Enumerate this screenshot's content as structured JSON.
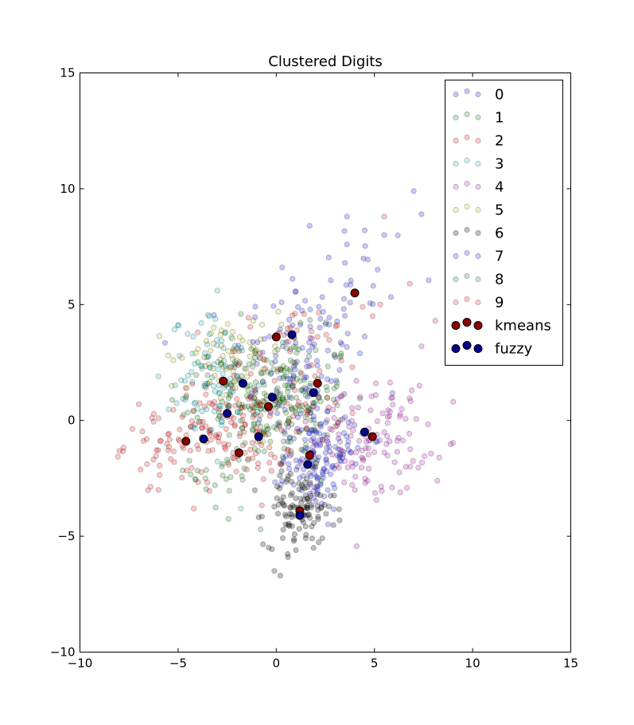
{
  "chart_data": {
    "type": "scatter",
    "title": "Clustered Digits",
    "xlabel": "",
    "ylabel": "",
    "xlim": [
      -10,
      15
    ],
    "ylim": [
      -10,
      15
    ],
    "xticks": [
      -10,
      -5,
      0,
      5,
      10,
      15
    ],
    "yticks": [
      -10,
      -5,
      0,
      5,
      10,
      15
    ],
    "xtick_labels": [
      "−10",
      "−5",
      "0",
      "5",
      "10",
      "15"
    ],
    "ytick_labels": [
      "−10",
      "−5",
      "0",
      "5",
      "10",
      "15"
    ],
    "grid": false,
    "legend_placement": "top-right",
    "series": [
      {
        "name": "0",
        "color": "#0000ff",
        "alpha": 0.22,
        "clusters": [
          {
            "cx": 1.2,
            "cy": 2.5,
            "sx": 1.7,
            "sy": 1.8,
            "n": 110
          },
          {
            "cx": 3.6,
            "cy": 5.8,
            "sx": 1.8,
            "sy": 1.6,
            "n": 25
          }
        ],
        "extra_points": [
          [
            7.0,
            9.9
          ],
          [
            7.4,
            8.9
          ],
          [
            3.6,
            8.8
          ],
          [
            5.5,
            8.0
          ],
          [
            4.5,
            8.2
          ],
          [
            1.7,
            8.4
          ],
          [
            3.6,
            7.6
          ],
          [
            0.3,
            6.6
          ]
        ]
      },
      {
        "name": "1",
        "color": "#008000",
        "alpha": 0.22,
        "clusters": [
          {
            "cx": 0.2,
            "cy": 1.2,
            "sx": 1.7,
            "sy": 1.3,
            "n": 130
          },
          {
            "cx": -2.5,
            "cy": -2.2,
            "sx": 0.9,
            "sy": 1.0,
            "n": 25
          }
        ],
        "extra_points": [
          [
            -0.8,
            -4.7
          ],
          [
            -1.8,
            4.6
          ],
          [
            3.3,
            2.8
          ]
        ]
      },
      {
        "name": "2",
        "color": "#ff0000",
        "alpha": 0.22,
        "clusters": [
          {
            "cx": -2.2,
            "cy": -0.5,
            "sx": 1.6,
            "sy": 1.1,
            "n": 110
          },
          {
            "cx": -5.5,
            "cy": -1.0,
            "sx": 1.1,
            "sy": 0.8,
            "n": 50
          }
        ],
        "extra_points": [
          [
            5.5,
            8.8
          ],
          [
            6.8,
            5.9
          ],
          [
            5.3,
            5.0
          ],
          [
            8.1,
            4.3
          ],
          [
            -7.0,
            0.7
          ],
          [
            -6.0,
            -3.0
          ],
          [
            -4.2,
            -3.8
          ]
        ]
      },
      {
        "name": "3",
        "color": "#00bfbf",
        "alpha": 0.22,
        "clusters": [
          {
            "cx": -3.0,
            "cy": 1.8,
            "sx": 1.2,
            "sy": 1.3,
            "n": 90
          }
        ],
        "extra_points": [
          [
            -3.0,
            5.6
          ],
          [
            -5.0,
            4.1
          ],
          [
            -6.0,
            1.9
          ],
          [
            -3.4,
            4.5
          ],
          [
            -1.8,
            -3.8
          ]
        ]
      },
      {
        "name": "4",
        "color": "#bf00bf",
        "alpha": 0.22,
        "clusters": [
          {
            "cx": 4.8,
            "cy": -0.8,
            "sx": 1.4,
            "sy": 1.2,
            "n": 120
          }
        ],
        "extra_points": [
          [
            7.3,
            1.5
          ],
          [
            6.9,
            1.3
          ],
          [
            8.3,
            -1.6
          ],
          [
            8.2,
            -2.6
          ],
          [
            7.4,
            3.2
          ],
          [
            6.6,
            -2.0
          ],
          [
            5.9,
            -2.9
          ],
          [
            4.0,
            -3.0
          ]
        ]
      },
      {
        "name": "5",
        "color": "#bfbf00",
        "alpha": 0.22,
        "clusters": [
          {
            "cx": -2.6,
            "cy": 2.4,
            "sx": 1.4,
            "sy": 1.1,
            "n": 60
          }
        ],
        "extra_points": [
          [
            -5.5,
            2.8
          ],
          [
            -4.8,
            2.7
          ],
          [
            -0.8,
            3.5
          ],
          [
            0.1,
            4.7
          ]
        ]
      },
      {
        "name": "6",
        "color": "#000000",
        "alpha": 0.25,
        "clusters": [
          {
            "cx": 1.2,
            "cy": -3.8,
            "sx": 0.9,
            "sy": 0.8,
            "n": 110
          }
        ],
        "extra_points": [
          [
            0.2,
            -6.7
          ],
          [
            -0.1,
            -6.5
          ],
          [
            0.6,
            -5.9
          ],
          [
            1.0,
            -5.6
          ],
          [
            1.9,
            -5.5
          ],
          [
            0.9,
            -5.2
          ]
        ]
      },
      {
        "name": "7",
        "color": "#0000ff",
        "alpha": 0.22,
        "clusters": [
          {
            "cx": 1.9,
            "cy": -1.6,
            "sx": 0.8,
            "sy": 1.1,
            "n": 110
          },
          {
            "cx": 3.3,
            "cy": -0.8,
            "sx": 0.8,
            "sy": 0.6,
            "n": 25
          }
        ],
        "extra_points": [
          [
            0.3,
            -2.6
          ],
          [
            1.4,
            -4.1
          ]
        ]
      },
      {
        "name": "8",
        "color": "#008000",
        "alpha": 0.22,
        "clusters": [
          {
            "cx": -0.3,
            "cy": 0.6,
            "sx": 1.6,
            "sy": 1.2,
            "n": 110
          }
        ],
        "extra_points": [
          [
            -4.6,
            1.0
          ],
          [
            2.3,
            -2.6
          ],
          [
            3.3,
            2.9
          ],
          [
            -2.6,
            3.8
          ]
        ]
      },
      {
        "name": "9",
        "color": "#ff0000",
        "alpha": 0.22,
        "clusters": [
          {
            "cx": 0.8,
            "cy": 1.8,
            "sx": 1.9,
            "sy": 1.7,
            "n": 70
          }
        ],
        "extra_points": [
          [
            4.9,
            4.5
          ],
          [
            4.4,
            4.9
          ],
          [
            3.1,
            4.1
          ],
          [
            -4.0,
            3.8
          ]
        ]
      }
    ],
    "centroid_series": [
      {
        "name": "kmeans",
        "color": "#8b0000",
        "points": [
          [
            4.0,
            5.5
          ],
          [
            0.0,
            3.6
          ],
          [
            -2.7,
            1.7
          ],
          [
            2.1,
            1.6
          ],
          [
            -0.4,
            0.6
          ],
          [
            -4.6,
            -0.9
          ],
          [
            -1.9,
            -1.4
          ],
          [
            4.9,
            -0.7
          ],
          [
            1.7,
            -1.5
          ],
          [
            1.2,
            -3.9
          ]
        ]
      },
      {
        "name": "fuzzy",
        "color": "#00008b",
        "points": [
          [
            0.8,
            3.7
          ],
          [
            -1.7,
            1.6
          ],
          [
            -0.2,
            1.0
          ],
          [
            1.9,
            1.2
          ],
          [
            -2.5,
            0.3
          ],
          [
            -3.7,
            -0.8
          ],
          [
            -0.9,
            -0.7
          ],
          [
            4.5,
            -0.5
          ],
          [
            1.6,
            -1.9
          ],
          [
            1.2,
            -4.1
          ]
        ]
      }
    ]
  }
}
